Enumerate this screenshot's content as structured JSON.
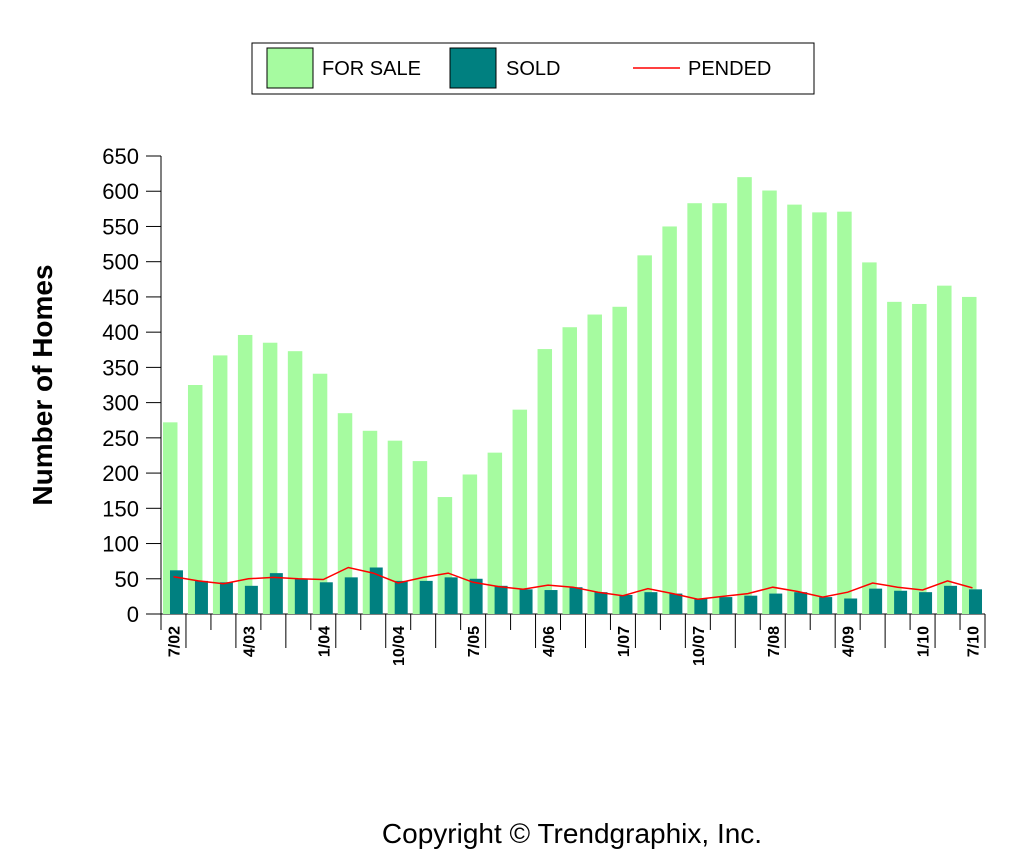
{
  "chart_data": {
    "type": "bar",
    "title": "",
    "xlabel": "",
    "ylabel": "Number of Homes",
    "ylim": [
      0,
      650
    ],
    "yticks": [
      0,
      50,
      100,
      150,
      200,
      250,
      300,
      350,
      400,
      450,
      500,
      550,
      600,
      650
    ],
    "legend_position": "top",
    "categories": [
      "7/02",
      "",
      "",
      "4/03",
      "",
      "",
      "1/04",
      "",
      "",
      "10/04",
      "",
      "",
      "7/05",
      "",
      "",
      "4/06",
      "",
      "",
      "1/07",
      "",
      "",
      "10/07",
      "",
      "",
      "7/08",
      "",
      "",
      "4/09",
      "",
      "",
      "1/10",
      "",
      "7/10"
    ],
    "series": [
      {
        "name": "FOR SALE",
        "kind": "bar",
        "color": "#a6fba0",
        "values": [
          272,
          325,
          367,
          396,
          385,
          373,
          341,
          285,
          260,
          246,
          217,
          166,
          198,
          229,
          290,
          376,
          407,
          425,
          436,
          509,
          550,
          583,
          583,
          620,
          601,
          581,
          570,
          571,
          499,
          443,
          440,
          466,
          450
        ]
      },
      {
        "name": "SOLD",
        "kind": "bar",
        "color": "#008080",
        "values": [
          62,
          47,
          45,
          40,
          58,
          50,
          45,
          52,
          66,
          47,
          47,
          52,
          50,
          40,
          35,
          34,
          38,
          31,
          27,
          31,
          29,
          22,
          24,
          26,
          29,
          31,
          24,
          22,
          36,
          33,
          31,
          40,
          35
        ]
      },
      {
        "name": "PENDED",
        "kind": "line",
        "color": "#ff0000",
        "values": [
          53,
          47,
          43,
          50,
          52,
          50,
          49,
          66,
          58,
          44,
          52,
          58,
          45,
          39,
          35,
          41,
          38,
          31,
          26,
          36,
          29,
          21,
          25,
          29,
          38,
          32,
          24,
          31,
          44,
          38,
          34,
          47,
          37
        ]
      }
    ]
  },
  "copyright": "Copyright © Trendgraphix, Inc."
}
